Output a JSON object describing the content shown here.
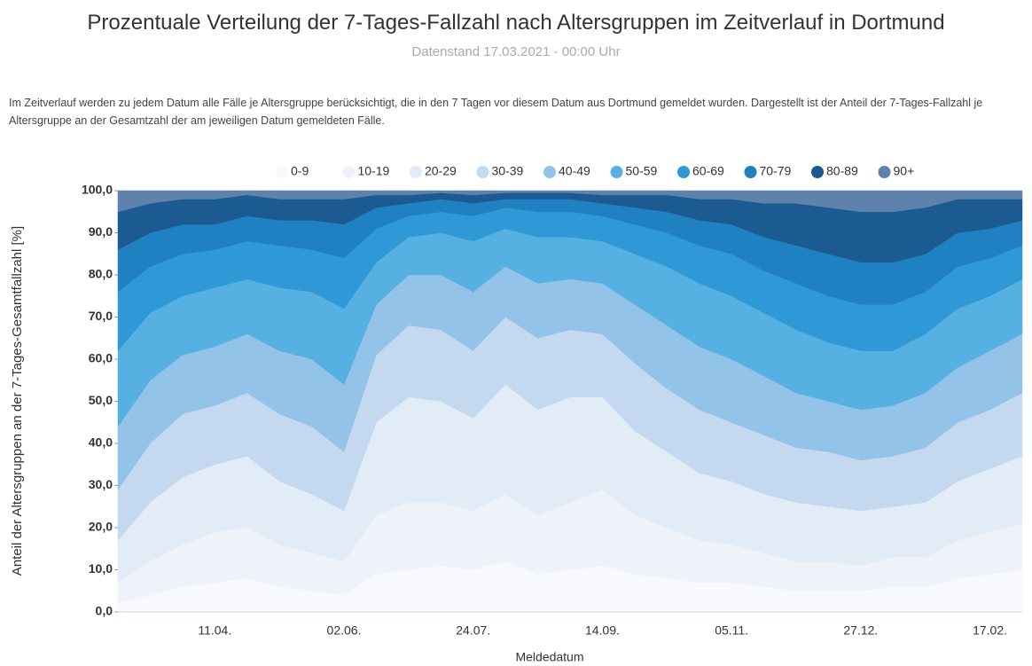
{
  "chart_data": {
    "type": "stacked_area",
    "title": "Prozentuale Verteilung der 7-Tages-Fallzahl nach Altersgruppen im Zeitverlauf in Dortmund",
    "subtitle": "Datenstand 17.03.2021 - 00:00 Uhr",
    "description": "Im Zeitverlauf werden zu jedem Datum alle Fälle je Altersgruppe berücksichtigt, die in den 7 Tagen vor diesem Datum aus Dortmund gemeldet wurden. Dargestellt ist der Anteil der 7-Tages-Fallzahl je Altersgruppe an der Gesamtzahl der am jeweiligen Datum gemeldeten Fälle.",
    "x_label": "Meldedatum",
    "y_label": "Anteil der Altersgruppen an der 7-Tages-Gesamtfallzahl [%]",
    "categories": [
      null,
      null,
      null,
      "11.04.",
      null,
      null,
      null,
      "02.06.",
      null,
      null,
      null,
      "24.07.",
      null,
      null,
      null,
      "14.09.",
      null,
      null,
      null,
      "05.11.",
      null,
      null,
      null,
      "27.12.",
      null,
      null,
      null,
      "17.02.",
      null
    ],
    "ylim": [
      0,
      100
    ],
    "yticks": [
      {
        "value": 0,
        "label": "0,0"
      },
      {
        "value": 10,
        "label": "10,0"
      },
      {
        "value": 20,
        "label": "20,0"
      },
      {
        "value": 30,
        "label": "30,0"
      },
      {
        "value": 40,
        "label": "40,0"
      },
      {
        "value": 50,
        "label": "50,0"
      },
      {
        "value": 60,
        "label": "60,0"
      },
      {
        "value": 70,
        "label": "70,0"
      },
      {
        "value": 80,
        "label": "80,0"
      },
      {
        "value": 90,
        "label": "90,0"
      },
      {
        "value": 100,
        "label": "100,0"
      }
    ],
    "legend": "top",
    "series": [
      {
        "name": "0-9",
        "color": "#f7f9fc",
        "values": [
          2,
          4,
          6,
          7,
          8,
          6,
          5,
          4,
          9,
          10,
          11,
          10,
          12,
          9,
          10,
          11,
          9,
          8,
          7,
          7,
          6,
          5,
          5,
          5,
          6,
          6,
          8,
          9,
          10
        ]
      },
      {
        "name": "10-19",
        "color": "#eef3f9",
        "values": [
          5,
          8,
          10,
          12,
          12,
          10,
          9,
          8,
          14,
          16,
          15,
          14,
          16,
          14,
          16,
          18,
          14,
          12,
          10,
          9,
          8,
          7,
          7,
          6,
          7,
          7,
          9,
          10,
          11
        ]
      },
      {
        "name": "20-29",
        "color": "#e2ecf6",
        "values": [
          10,
          14,
          16,
          16,
          17,
          15,
          14,
          12,
          22,
          25,
          24,
          22,
          26,
          25,
          25,
          22,
          20,
          18,
          16,
          15,
          14,
          14,
          13,
          13,
          12,
          13,
          14,
          15,
          16
        ]
      },
      {
        "name": "30-39",
        "color": "#c4d9ef",
        "values": [
          12,
          14,
          15,
          14,
          15,
          16,
          16,
          14,
          16,
          17,
          17,
          16,
          16,
          17,
          16,
          15,
          16,
          15,
          15,
          14,
          14,
          13,
          13,
          12,
          12,
          13,
          14,
          14,
          15
        ]
      },
      {
        "name": "40-49",
        "color": "#93c3e8",
        "values": [
          15,
          15,
          14,
          14,
          14,
          15,
          16,
          16,
          12,
          12,
          13,
          14,
          12,
          13,
          12,
          12,
          14,
          15,
          15,
          15,
          14,
          13,
          12,
          12,
          12,
          13,
          13,
          14,
          14
        ]
      },
      {
        "name": "50-59",
        "color": "#56b0e2",
        "values": [
          18,
          16,
          14,
          14,
          13,
          15,
          16,
          18,
          10,
          9,
          10,
          12,
          9,
          11,
          10,
          10,
          12,
          14,
          15,
          15,
          15,
          15,
          14,
          14,
          13,
          14,
          14,
          13,
          13
        ]
      },
      {
        "name": "60-69",
        "color": "#2f98d6",
        "values": [
          14,
          11,
          10,
          9,
          9,
          10,
          10,
          12,
          8,
          5,
          5,
          6,
          5,
          6,
          6,
          6,
          7,
          8,
          9,
          10,
          10,
          11,
          11,
          11,
          11,
          10,
          10,
          9,
          8
        ]
      },
      {
        "name": "70-79",
        "color": "#1f80c2",
        "values": [
          10,
          8,
          7,
          6,
          6,
          6,
          7,
          8,
          5,
          3,
          3,
          3,
          2,
          3,
          3,
          3,
          4,
          5,
          6,
          7,
          8,
          9,
          10,
          10,
          10,
          9,
          8,
          7,
          6
        ]
      },
      {
        "name": "80-89",
        "color": "#1c5b92",
        "values": [
          9,
          7,
          6,
          6,
          5,
          5,
          5,
          6,
          3,
          2,
          1.5,
          2,
          1.5,
          1.5,
          1.5,
          2,
          3,
          4,
          5,
          6,
          8,
          10,
          11,
          12,
          12,
          11,
          8,
          7,
          5
        ]
      },
      {
        "name": "90+",
        "color": "#5f82ac",
        "values": [
          5,
          3,
          2,
          2,
          1,
          2,
          2,
          2,
          1,
          1,
          0.5,
          1,
          0.5,
          0.5,
          0.5,
          1,
          1,
          1,
          2,
          2,
          3,
          3,
          4,
          5,
          5,
          4,
          2,
          2,
          2
        ]
      }
    ]
  }
}
